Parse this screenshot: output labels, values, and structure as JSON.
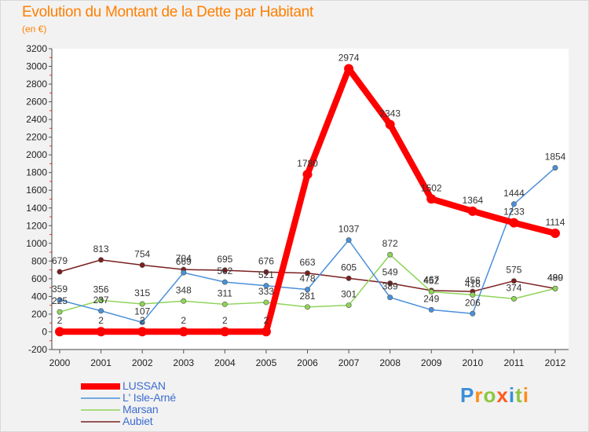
{
  "header": {
    "title": "Evolution du Montant de la Dette par Habitant",
    "subtitle": "(en €)"
  },
  "logo": {
    "letters": [
      "P",
      "r",
      "o",
      "x",
      "i",
      "t",
      "i"
    ],
    "colors": [
      "#3a8fd8",
      "#ff8c1a",
      "#8cc63f",
      "#ff5a1f",
      "#3a8fd8",
      "#8cc63f",
      "#ff8c1a"
    ]
  },
  "chart_data": {
    "type": "line",
    "title": "Evolution du Montant de la Dette par Habitant",
    "subtitle": "(en €)",
    "xlabel": "",
    "ylabel": "",
    "x": [
      "2000",
      "2001",
      "2002",
      "2003",
      "2004",
      "2005",
      "2006",
      "2007",
      "2008",
      "2009",
      "2010",
      "2011",
      "2012"
    ],
    "ylim": [
      -200,
      3200
    ],
    "yticks": [
      -200,
      0,
      200,
      400,
      600,
      800,
      1000,
      1200,
      1400,
      1600,
      1800,
      2000,
      2200,
      2400,
      2600,
      2800,
      3000,
      3200
    ],
    "grid": false,
    "legend_position": "bottom-left",
    "series": [
      {
        "name": "LUSSAN",
        "color": "#ff0000",
        "values": [
          2,
          2,
          2,
          2,
          2,
          2,
          1780,
          2974,
          2343,
          1502,
          1364,
          1233,
          1114
        ],
        "labels": [
          "2",
          "2",
          "2",
          "2",
          "2",
          "2",
          "1780",
          "2974",
          "2343",
          "1502",
          "1364",
          "1233",
          "1114"
        ]
      },
      {
        "name": "L' Isle-Arné",
        "color": "#4a90d9",
        "values": [
          359,
          237,
          107,
          669,
          562,
          521,
          478,
          1037,
          389,
          249,
          206,
          1444,
          1854
        ],
        "labels": [
          "359",
          "237",
          "107",
          "669",
          "562",
          "521",
          "478",
          "1037",
          "389",
          "249",
          "206",
          "1444",
          "1854"
        ]
      },
      {
        "name": "Marsan",
        "color": "#8fd45a",
        "values": [
          225,
          356,
          315,
          348,
          311,
          333,
          281,
          301,
          872,
          452,
          418,
          374,
          490
        ],
        "labels": [
          "225",
          "356",
          "315",
          "348",
          "311",
          "333",
          "281",
          "301",
          "872",
          "452",
          "418",
          "374",
          "490"
        ]
      },
      {
        "name": "Aubiet",
        "color": "#7a1f1f",
        "values": [
          679,
          813,
          754,
          704,
          695,
          676,
          663,
          605,
          549,
          467,
          456,
          575,
          489
        ],
        "labels": [
          "679",
          "813",
          "754",
          "704",
          "695",
          "676",
          "663",
          "605",
          "549",
          "467",
          "456",
          "575",
          "489"
        ]
      }
    ]
  }
}
